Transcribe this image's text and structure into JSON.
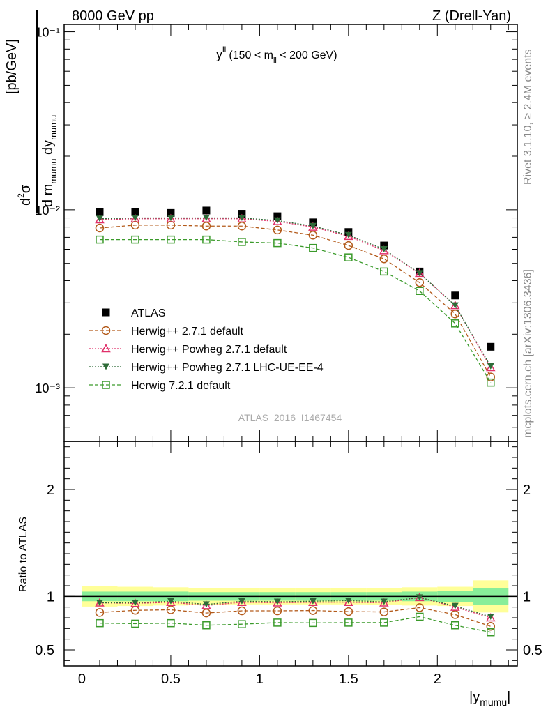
{
  "header": {
    "left": "8000 GeV pp",
    "right": "Z (Drell-Yan)"
  },
  "side": {
    "rivet": "Rivet 3.1.10, ≥ 2.4M events",
    "source": "mcplots.cern.ch [arXiv:1306.3436]"
  },
  "panel_label": {
    "var": "y",
    "var_sup": "ll",
    "range_pre": "(150 < m",
    "range_sub": "ll",
    "range_post": " < 200 GeV)"
  },
  "watermark": "ATLAS_2016_I1467454",
  "labels": {
    "ylabel_main": "[pb/GeV]",
    "ylabel_ratio": "Ratio to ATLAS",
    "xlabel": "|y",
    "xlabel_sub": "mumu",
    "xlabel_close": "|"
  },
  "colors": {
    "data": "#000000",
    "herwigpp": "#b35a1a",
    "powheg": "#e0306a",
    "powheg_lhc": "#2e6b38",
    "herwig7": "#3a9a2a",
    "band_outer": "#ffff99",
    "band_inner": "#88ee99"
  },
  "chart_data": [
    {
      "type": "scatter",
      "log_y": true,
      "xlim": [
        -0.1,
        2.45
      ],
      "ylim": [
        0.0005,
        0.11
      ],
      "y_tick_labels": [
        "10⁻³",
        "10⁻²",
        "10⁻¹"
      ],
      "x": [
        0.1,
        0.3,
        0.5,
        0.7,
        0.9,
        1.1,
        1.3,
        1.5,
        1.7,
        1.9,
        2.1,
        2.3
      ],
      "series": [
        {
          "name": "ATLAS",
          "marker": "square-filled",
          "values": [
            0.0097,
            0.0097,
            0.0096,
            0.0099,
            0.0095,
            0.0092,
            0.0085,
            0.0075,
            0.0063,
            0.0045,
            0.0033,
            0.0017
          ]
        },
        {
          "name": "Herwig++ 2.7.1 default",
          "marker": "circle-open",
          "values": [
            0.0079,
            0.0082,
            0.0082,
            0.0081,
            0.0081,
            0.0077,
            0.0072,
            0.0063,
            0.0053,
            0.0039,
            0.0026,
            0.00115
          ]
        },
        {
          "name": "Herwig++ Powheg 2.7.1 default",
          "marker": "triangle-open",
          "values": [
            0.0088,
            0.0089,
            0.0089,
            0.0089,
            0.0089,
            0.0086,
            0.008,
            0.0071,
            0.0059,
            0.0044,
            0.0029,
            0.0013
          ]
        },
        {
          "name": "Herwig++ Powheg 2.7.1 LHC-UE-EE-4",
          "marker": "triangle-down-filled",
          "values": [
            0.0089,
            0.009,
            0.009,
            0.009,
            0.009,
            0.0087,
            0.0081,
            0.0072,
            0.006,
            0.0044,
            0.0029,
            0.00132
          ]
        },
        {
          "name": "Herwig 7.2.1 default",
          "marker": "square-open",
          "values": [
            0.0068,
            0.0068,
            0.0068,
            0.0068,
            0.0066,
            0.0065,
            0.0061,
            0.0054,
            0.0045,
            0.0035,
            0.0023,
            0.00107
          ]
        }
      ]
    },
    {
      "type": "scatter",
      "xlim": [
        -0.1,
        2.45
      ],
      "ylim": [
        0.35,
        2.45
      ],
      "x_ticks": [
        0,
        0.5,
        1,
        1.5,
        2
      ],
      "x_tick_labels": [
        "0",
        "0.5",
        "1",
        "1.5",
        "2"
      ],
      "y_ticks": [
        0.5,
        1,
        2
      ],
      "y_tick_labels": [
        "0.5",
        "1",
        "2"
      ],
      "x": [
        0.1,
        0.3,
        0.5,
        0.7,
        0.9,
        1.1,
        1.3,
        1.5,
        1.7,
        1.9,
        2.1,
        2.3
      ],
      "band_edges": [
        0.0,
        0.2,
        0.4,
        0.6,
        0.8,
        1.0,
        1.2,
        1.4,
        1.6,
        1.8,
        2.0,
        2.2,
        2.4
      ],
      "band_outer": [
        0.095,
        0.09,
        0.085,
        0.08,
        0.075,
        0.075,
        0.075,
        0.075,
        0.08,
        0.085,
        0.09,
        0.15
      ],
      "band_inner": [
        0.045,
        0.045,
        0.045,
        0.04,
        0.04,
        0.04,
        0.04,
        0.04,
        0.04,
        0.045,
        0.05,
        0.08
      ],
      "series": [
        {
          "name": "Herwig++ 2.7.1 default",
          "values": [
            0.85,
            0.87,
            0.875,
            0.845,
            0.865,
            0.865,
            0.868,
            0.858,
            0.855,
            0.895,
            0.83,
            0.72
          ]
        },
        {
          "name": "Herwig++ Powheg 2.7.1 default",
          "values": [
            0.94,
            0.935,
            0.945,
            0.915,
            0.945,
            0.94,
            0.945,
            0.945,
            0.94,
            0.99,
            0.9,
            0.8
          ]
        },
        {
          "name": "Herwig++ Powheg 2.7.1 LHC-UE-EE-4",
          "values": [
            0.94,
            0.94,
            0.955,
            0.925,
            0.955,
            0.95,
            0.955,
            0.96,
            0.95,
            0.99,
            0.91,
            0.81
          ]
        },
        {
          "name": "Herwig 7.2.1 default",
          "values": [
            0.75,
            0.745,
            0.75,
            0.73,
            0.74,
            0.755,
            0.752,
            0.755,
            0.755,
            0.81,
            0.73,
            0.665
          ]
        }
      ]
    }
  ]
}
